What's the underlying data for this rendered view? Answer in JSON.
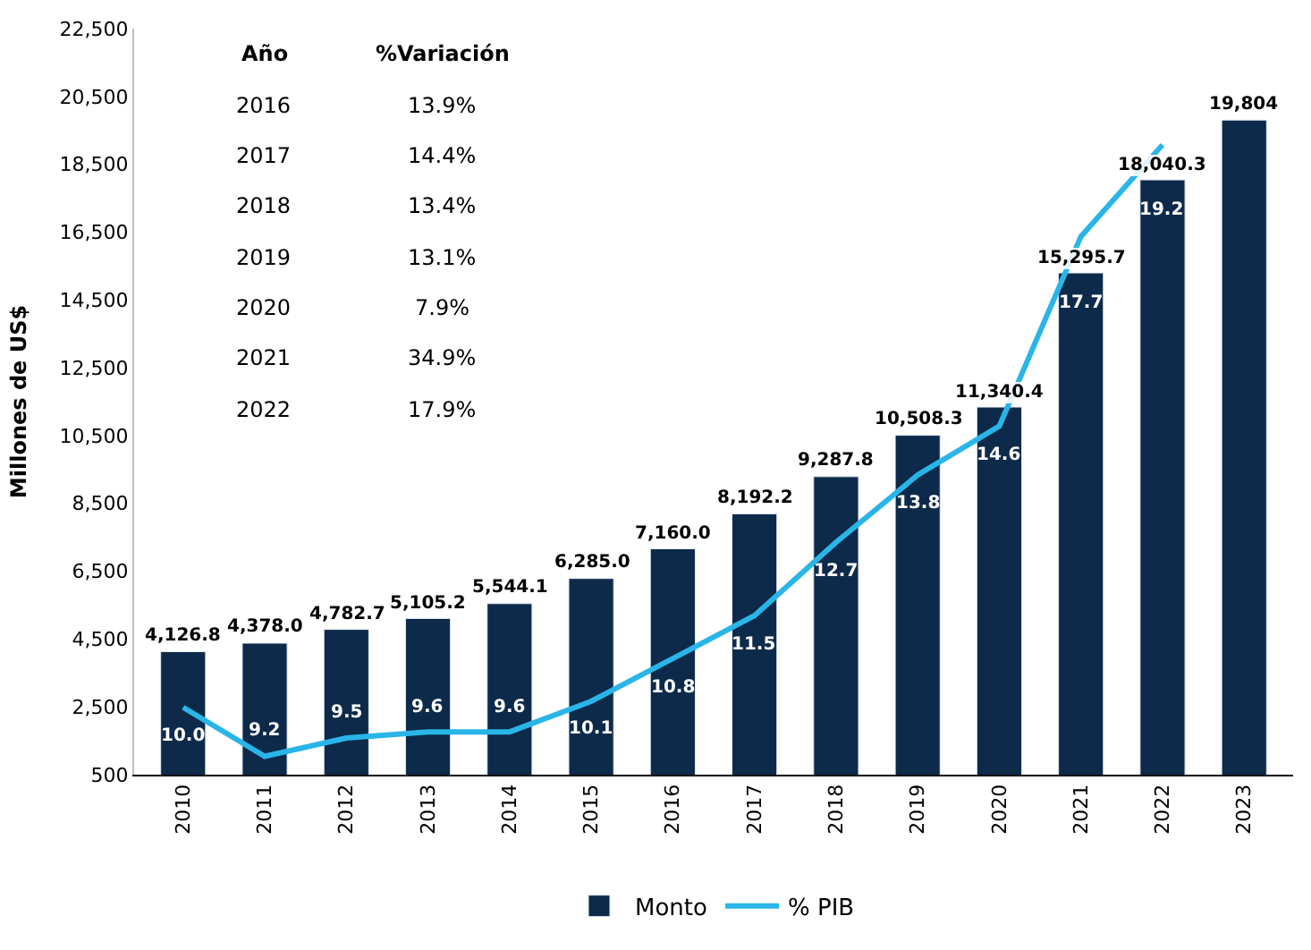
{
  "chart_data": {
    "type": "bar",
    "ylabel": "Millones de US$",
    "categories": [
      "2010",
      "2011",
      "2012",
      "2013",
      "2014",
      "2015",
      "2016",
      "2017",
      "2018",
      "2019",
      "2020",
      "2021",
      "2022",
      "2023"
    ],
    "series": [
      {
        "name": "Monto",
        "color": "#0d2a4a",
        "values": [
          4126.8,
          4378.0,
          4782.7,
          5105.2,
          5544.1,
          6285.0,
          7160.0,
          8192.2,
          9287.8,
          10508.3,
          11340.4,
          15295.7,
          18040.3,
          19804
        ],
        "value_labels": [
          "4,126.8",
          "4,378.0",
          "4,782.7",
          "5,105.2",
          "5,544.1",
          "6,285.0",
          "7,160.0",
          "8,192.2",
          "9,287.8",
          "10,508.3",
          "11,340.4",
          "15,295.7",
          "18,040.3",
          "19,804"
        ]
      },
      {
        "name": "% PIB",
        "type": "line",
        "axis": "y2",
        "color": "#29b5e8",
        "values": [
          10.0,
          9.2,
          9.5,
          9.6,
          9.6,
          10.1,
          10.8,
          11.5,
          12.7,
          13.8,
          14.6,
          17.7,
          19.2,
          null
        ],
        "value_labels": [
          "10.0",
          "9.2",
          "9.5",
          "9.6",
          "9.6",
          "10.1",
          "10.8",
          "11.5",
          "12.7",
          "13.8",
          "14.6",
          "17.7",
          "19.2",
          null
        ]
      }
    ],
    "ylim": [
      500,
      22500
    ],
    "yticks": [
      {
        "value": 500,
        "label": "500"
      },
      {
        "value": 2500,
        "label": "2,500"
      },
      {
        "value": 4500,
        "label": "4,500"
      },
      {
        "value": 6500,
        "label": "6,500"
      },
      {
        "value": 8500,
        "label": "8,500"
      },
      {
        "value": 10500,
        "label": "10,500"
      },
      {
        "value": 12500,
        "label": "12,500"
      },
      {
        "value": 14500,
        "label": "14,500"
      },
      {
        "value": 16500,
        "label": "16,500"
      },
      {
        "value": 18500,
        "label": "18,500"
      },
      {
        "value": 20500,
        "label": "20,500"
      },
      {
        "value": 22500,
        "label": "22,500"
      }
    ],
    "legend": "bottom",
    "marker": "none",
    "line_style": "solid",
    "annotations": [
      "Año",
      "%Variación",
      "2016",
      "13.9%",
      "2017",
      "14.4%",
      "2018",
      "13.4%",
      "2019",
      "13.1%",
      "2020",
      "7.9%",
      "2021",
      "34.9%",
      "2022",
      "17.9%"
    ]
  }
}
